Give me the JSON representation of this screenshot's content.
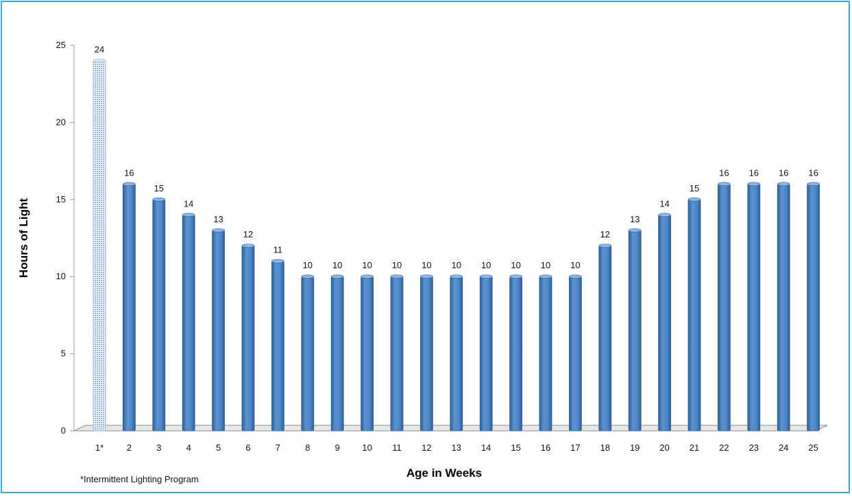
{
  "chart_data": {
    "type": "bar",
    "categories": [
      "1*",
      "2",
      "3",
      "4",
      "5",
      "6",
      "7",
      "8",
      "9",
      "10",
      "11",
      "12",
      "13",
      "14",
      "15",
      "16",
      "17",
      "18",
      "19",
      "20",
      "21",
      "22",
      "23",
      "24",
      "25"
    ],
    "values": [
      24,
      16,
      15,
      14,
      13,
      12,
      11,
      10,
      10,
      10,
      10,
      10,
      10,
      10,
      10,
      10,
      10,
      12,
      13,
      14,
      15,
      16,
      16,
      16,
      16
    ],
    "xlabel": "Age  in Weeks",
    "ylabel": "Hours of Light",
    "ylim": [
      0,
      25
    ],
    "yticks": [
      0,
      5,
      10,
      15,
      20,
      25
    ],
    "grid": false,
    "colors": {
      "bar": "#4f86c6",
      "bar_dark": "#2f5f96",
      "bar_light": "#8fb6e3",
      "pattern_bar": "#9fc2e8",
      "frame": "#3aa6d8"
    }
  },
  "footnote": "*Intermittent Lighting Program"
}
